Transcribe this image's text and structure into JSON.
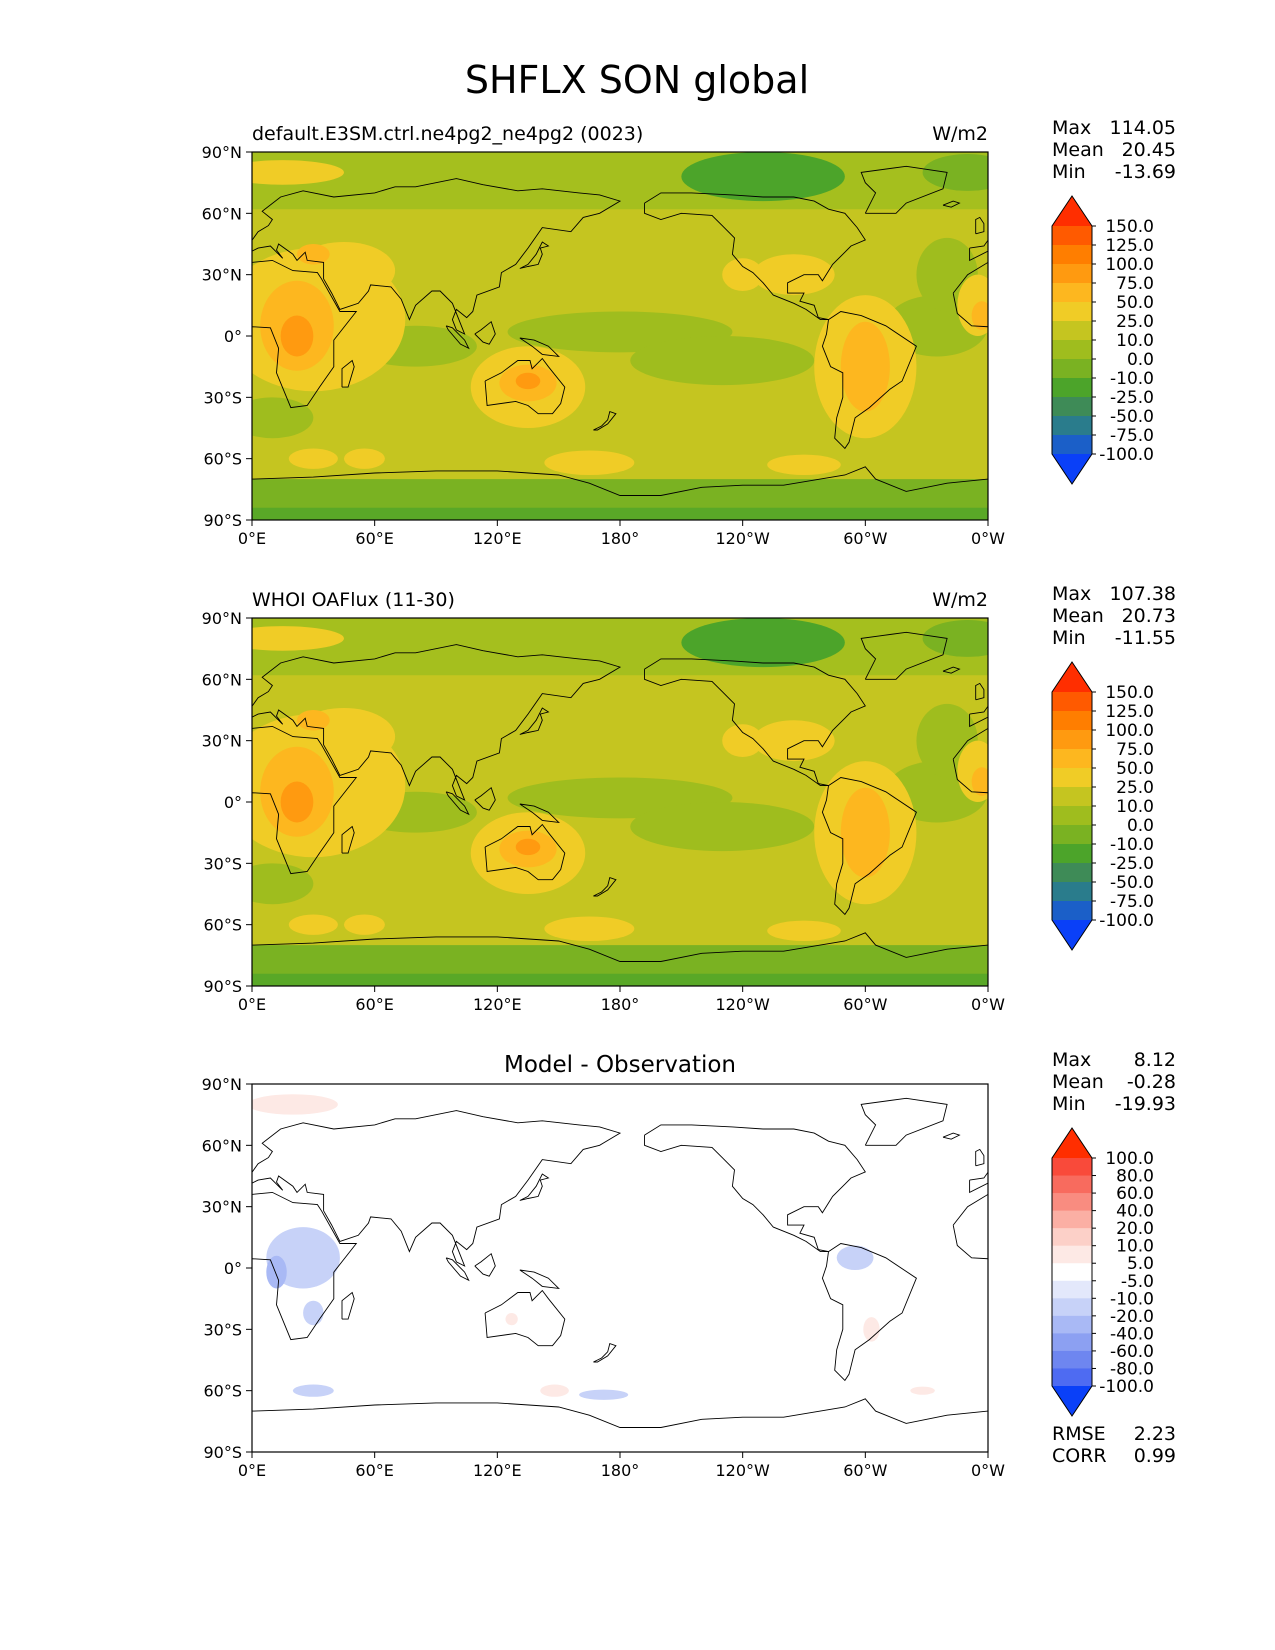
{
  "figure": {
    "title": "SHFLX SON global",
    "x_ticks": [
      "0°E",
      "60°E",
      "120°E",
      "180°",
      "120°W",
      "60°W",
      "0°W"
    ],
    "y_ticks": [
      "90°N",
      "60°N",
      "30°N",
      "0°",
      "30°S",
      "60°S",
      "90°S"
    ]
  },
  "colors": {
    "land_outline": "#000000",
    "frame": "#000000",
    "background": "#ffffff",
    "ocean_base": "#C5C520"
  },
  "chart_data": [
    {
      "type": "heatmap",
      "subplot": "model",
      "title_left": "default.E3SM.ctrl.ne4pg2_ne4pg2 (0023)",
      "title_right": "W/m2",
      "title_center": "",
      "xlim": [
        0,
        360
      ],
      "ylim": [
        -90,
        90
      ],
      "stats": [
        {
          "label": "Max",
          "value": "114.05"
        },
        {
          "label": "Mean",
          "value": "20.45"
        },
        {
          "label": "Min",
          "value": "-13.69"
        }
      ],
      "colorbar": {
        "labels": [
          "150.0",
          "125.0",
          "100.0",
          "75.0",
          "50.0",
          "25.0",
          "10.0",
          "0.0",
          "-10.0",
          "-25.0",
          "-50.0",
          "-75.0",
          "-100.0"
        ],
        "colors": [
          "#FF2E00",
          "#FF5A00",
          "#FF7E00",
          "#FF9A10",
          "#FDB71F",
          "#F0CC26",
          "#C5C520",
          "#9FBD1E",
          "#7AB222",
          "#4CA42A",
          "#3E8B57",
          "#2A7C8C",
          "#1B5FC8",
          "#0A40F8"
        ]
      },
      "regions": [
        {
          "level": "25 to 50",
          "approx": "Africa, Arabia, Australia, South America, subtropical ocean bands"
        },
        {
          "level": "50 to 75",
          "approx": "central Africa, interior Australia, central South America"
        },
        {
          "level": "-10 to 0",
          "approx": "Arctic and Antarctic fringes"
        }
      ]
    },
    {
      "type": "heatmap",
      "subplot": "observation",
      "title_left": "WHOI OAFlux (11-30)",
      "title_right": "W/m2",
      "title_center": "",
      "xlim": [
        0,
        360
      ],
      "ylim": [
        -90,
        90
      ],
      "stats": [
        {
          "label": "Max",
          "value": "107.38"
        },
        {
          "label": "Mean",
          "value": "20.73"
        },
        {
          "label": "Min",
          "value": "-11.55"
        }
      ],
      "colorbar": {
        "labels": [
          "150.0",
          "125.0",
          "100.0",
          "75.0",
          "50.0",
          "25.0",
          "10.0",
          "0.0",
          "-10.0",
          "-25.0",
          "-50.0",
          "-75.0",
          "-100.0"
        ],
        "colors": [
          "#FF2E00",
          "#FF5A00",
          "#FF7E00",
          "#FF9A10",
          "#FDB71F",
          "#F0CC26",
          "#C5C520",
          "#9FBD1E",
          "#7AB222",
          "#4CA42A",
          "#3E8B57",
          "#2A7C8C",
          "#1B5FC8",
          "#0A40F8"
        ]
      }
    },
    {
      "type": "heatmap",
      "subplot": "difference",
      "title_left": "",
      "title_right": "",
      "title_center": "Model - Observation",
      "xlim": [
        0,
        360
      ],
      "ylim": [
        -90,
        90
      ],
      "stats": [
        {
          "label": "Max",
          "value": "8.12"
        },
        {
          "label": "Mean",
          "value": "-0.28"
        },
        {
          "label": "Min",
          "value": "-19.93"
        }
      ],
      "metrics": [
        {
          "label": "RMSE",
          "value": "2.23"
        },
        {
          "label": "CORR",
          "value": "0.99"
        }
      ],
      "colorbar": {
        "labels": [
          "100.0",
          "80.0",
          "60.0",
          "40.0",
          "20.0",
          "10.0",
          "5.0",
          "-5.0",
          "-10.0",
          "-20.0",
          "-40.0",
          "-60.0",
          "-80.0",
          "-100.0"
        ],
        "colors": [
          "#FF2E00",
          "#F94A3A",
          "#F86B5E",
          "#F98C80",
          "#FBAFA4",
          "#FCD0C8",
          "#FDE9E5",
          "#FFFFFF",
          "#E3E8FB",
          "#C7D2F8",
          "#A9B9F5",
          "#8CA0F2",
          "#6E86F0",
          "#4E6BF2",
          "#0A40F8"
        ]
      }
    }
  ]
}
